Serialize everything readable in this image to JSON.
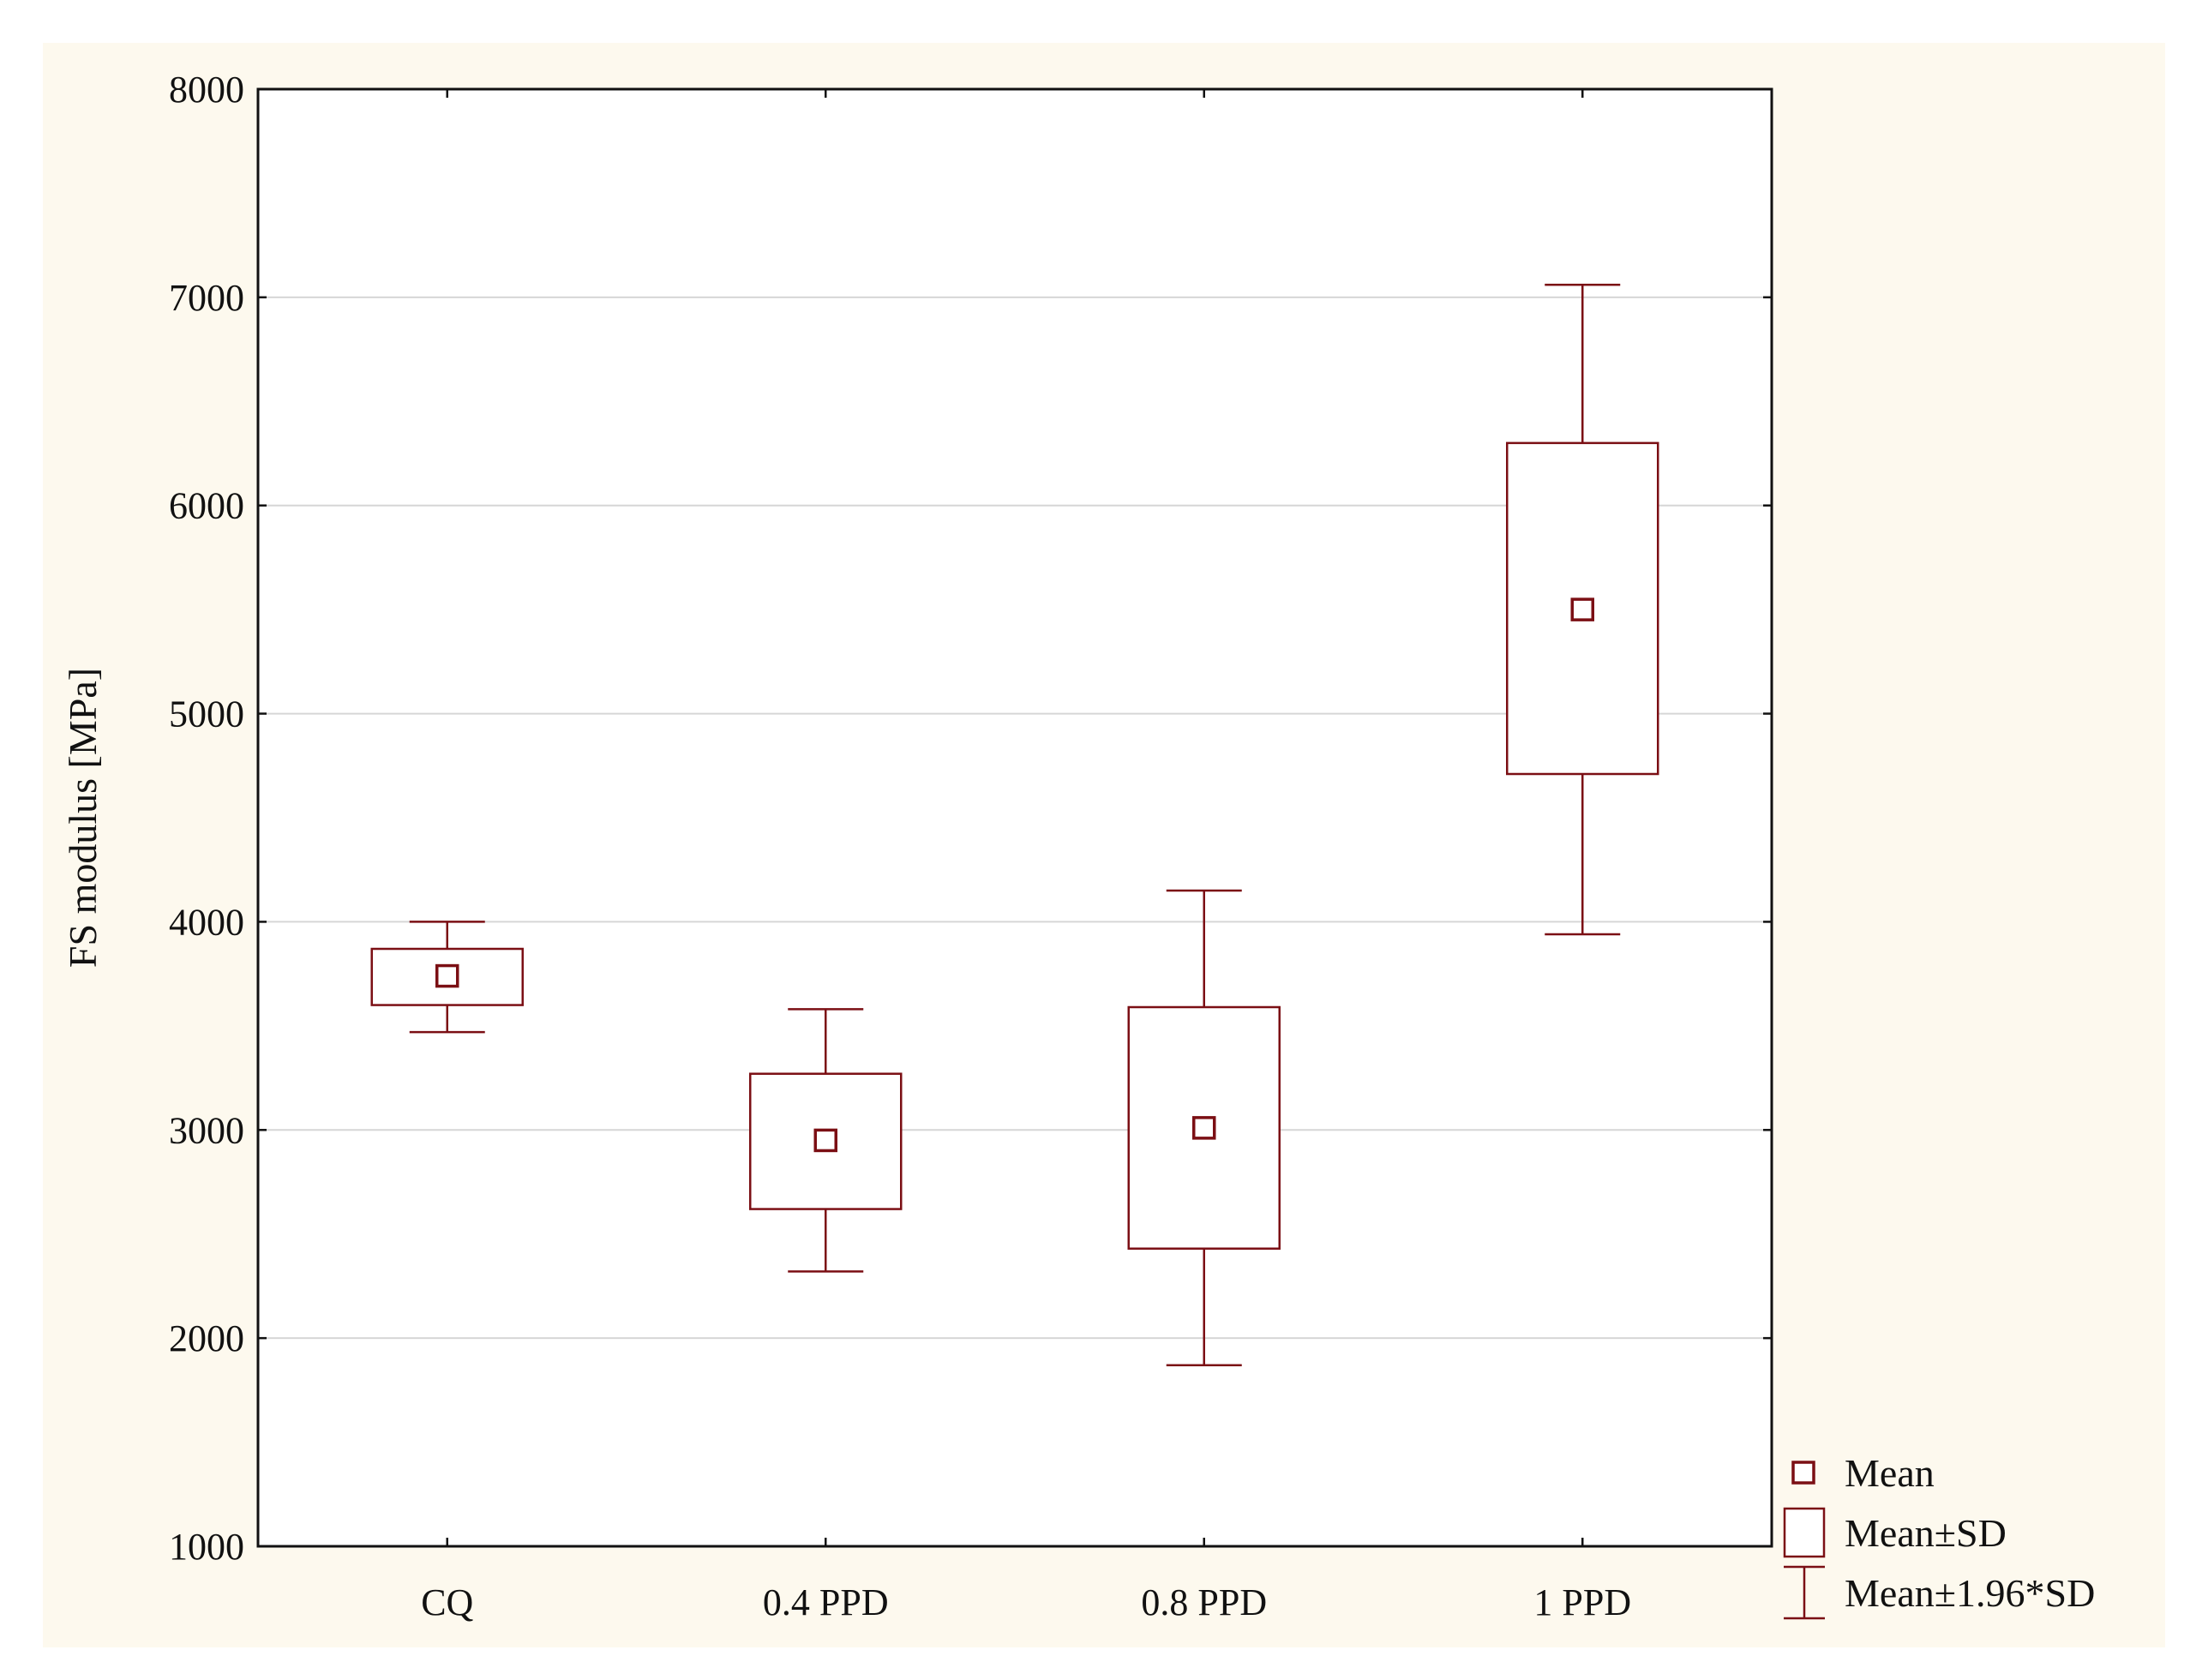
{
  "colors": {
    "series": "#7b0f14",
    "gridline": "#d6d6d6",
    "panel_background": "#fdf9ee",
    "plot_background": "#ffffff",
    "axis": "#111111"
  },
  "chart_data": {
    "type": "box",
    "title": "",
    "xlabel": "",
    "ylabel": "FS modulus [MPa]",
    "ylim": [
      1000,
      8000
    ],
    "yticks": [
      1000,
      2000,
      3000,
      4000,
      5000,
      6000,
      7000,
      8000
    ],
    "grid": true,
    "legend_position": "right-bottom",
    "categories": [
      "CQ",
      "0.4 PPD",
      "0.8 PPD",
      "1 PPD"
    ],
    "series": [
      {
        "name": "FS modulus",
        "mean": [
          3740,
          2950,
          3010,
          5500
        ],
        "mean_minus_sd": [
          3600,
          2620,
          2430,
          4710
        ],
        "mean_plus_sd": [
          3870,
          3270,
          3590,
          6300
        ],
        "whisker_low": [
          3470,
          2320,
          1870,
          3940
        ],
        "whisker_high": [
          4000,
          3580,
          4150,
          7060
        ]
      }
    ],
    "legend": [
      {
        "marker": "mean-square-icon",
        "label": "Mean"
      },
      {
        "marker": "sd-box-icon",
        "label": "Mean±SD"
      },
      {
        "marker": "whisker-icon",
        "label": "Mean±1.96*SD"
      }
    ]
  }
}
